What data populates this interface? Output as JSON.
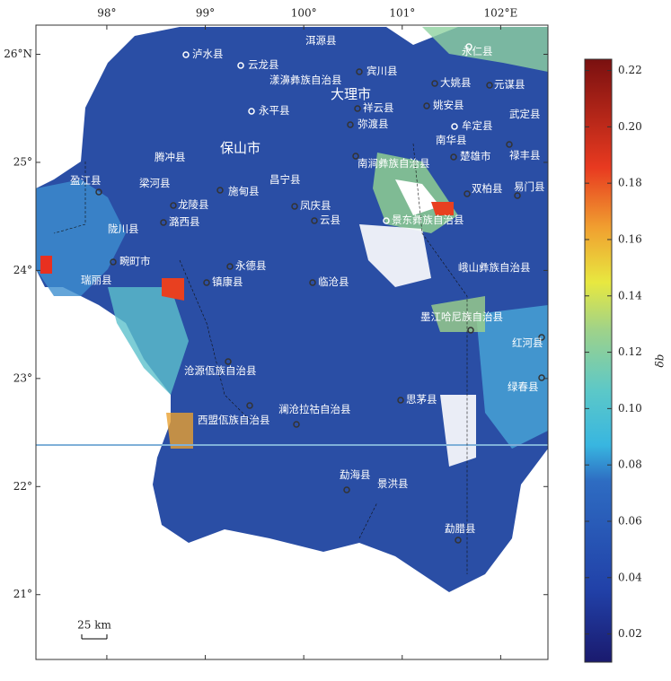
{
  "map": {
    "xlim": [
      97.28,
      102.48
    ],
    "ylim": [
      20.4,
      26.27
    ],
    "lon_ticks": [
      {
        "value": 98,
        "label": "98°"
      },
      {
        "value": 99,
        "label": "99°"
      },
      {
        "value": 100,
        "label": "100°"
      },
      {
        "value": 101,
        "label": "101°"
      },
      {
        "value": 102,
        "label": "102°E"
      }
    ],
    "lat_ticks": [
      {
        "value": 26,
        "label": "26°N"
      },
      {
        "value": 25,
        "label": "25°"
      },
      {
        "value": 24,
        "label": "24°"
      },
      {
        "value": 23,
        "label": "23°"
      },
      {
        "value": 22,
        "label": "22°"
      },
      {
        "value": 21,
        "label": "21°"
      }
    ],
    "places": [
      "泸水县",
      "云龙县",
      "洱源县",
      "宾川县",
      "漾濞彝族自治县",
      "大理市",
      "永平县",
      "祥云县",
      "弥渡县",
      "永仁县",
      "大姚县",
      "元谋县",
      "姚安县",
      "武定县",
      "牟定县",
      "南华县",
      "禄丰县",
      "楚雄市",
      "南涧彝族自治县",
      "腾冲县",
      "保山市",
      "昌宁县",
      "盈江县",
      "梁河县",
      "施甸县",
      "龙陵县",
      "潞西县",
      "凤庆县",
      "云县",
      "景东彝族自治县",
      "双柏县",
      "易门县",
      "陇川县",
      "畹町市",
      "瑞丽县",
      "永德县",
      "镇康县",
      "临沧县",
      "峨山彝族自治县",
      "墨江哈尼族自治县",
      "红河县",
      "沧源佤族自治县",
      "绿春县",
      "思茅县",
      "澜沧拉祜自治县",
      "西盟佤族自治县",
      "勐海县",
      "景洪县",
      "勐腊县"
    ],
    "scale_label": "25 km"
  },
  "colorbar": {
    "label": "δb",
    "lim": [
      0.01,
      0.224
    ],
    "ticks": [
      0.02,
      0.04,
      0.06,
      0.08,
      {
        "value": 0.1,
        "label": "0.10"
      },
      0.12,
      0.14,
      0.16,
      0.18,
      {
        "value": 0.2,
        "label": "0.20"
      },
      0.22
    ]
  }
}
